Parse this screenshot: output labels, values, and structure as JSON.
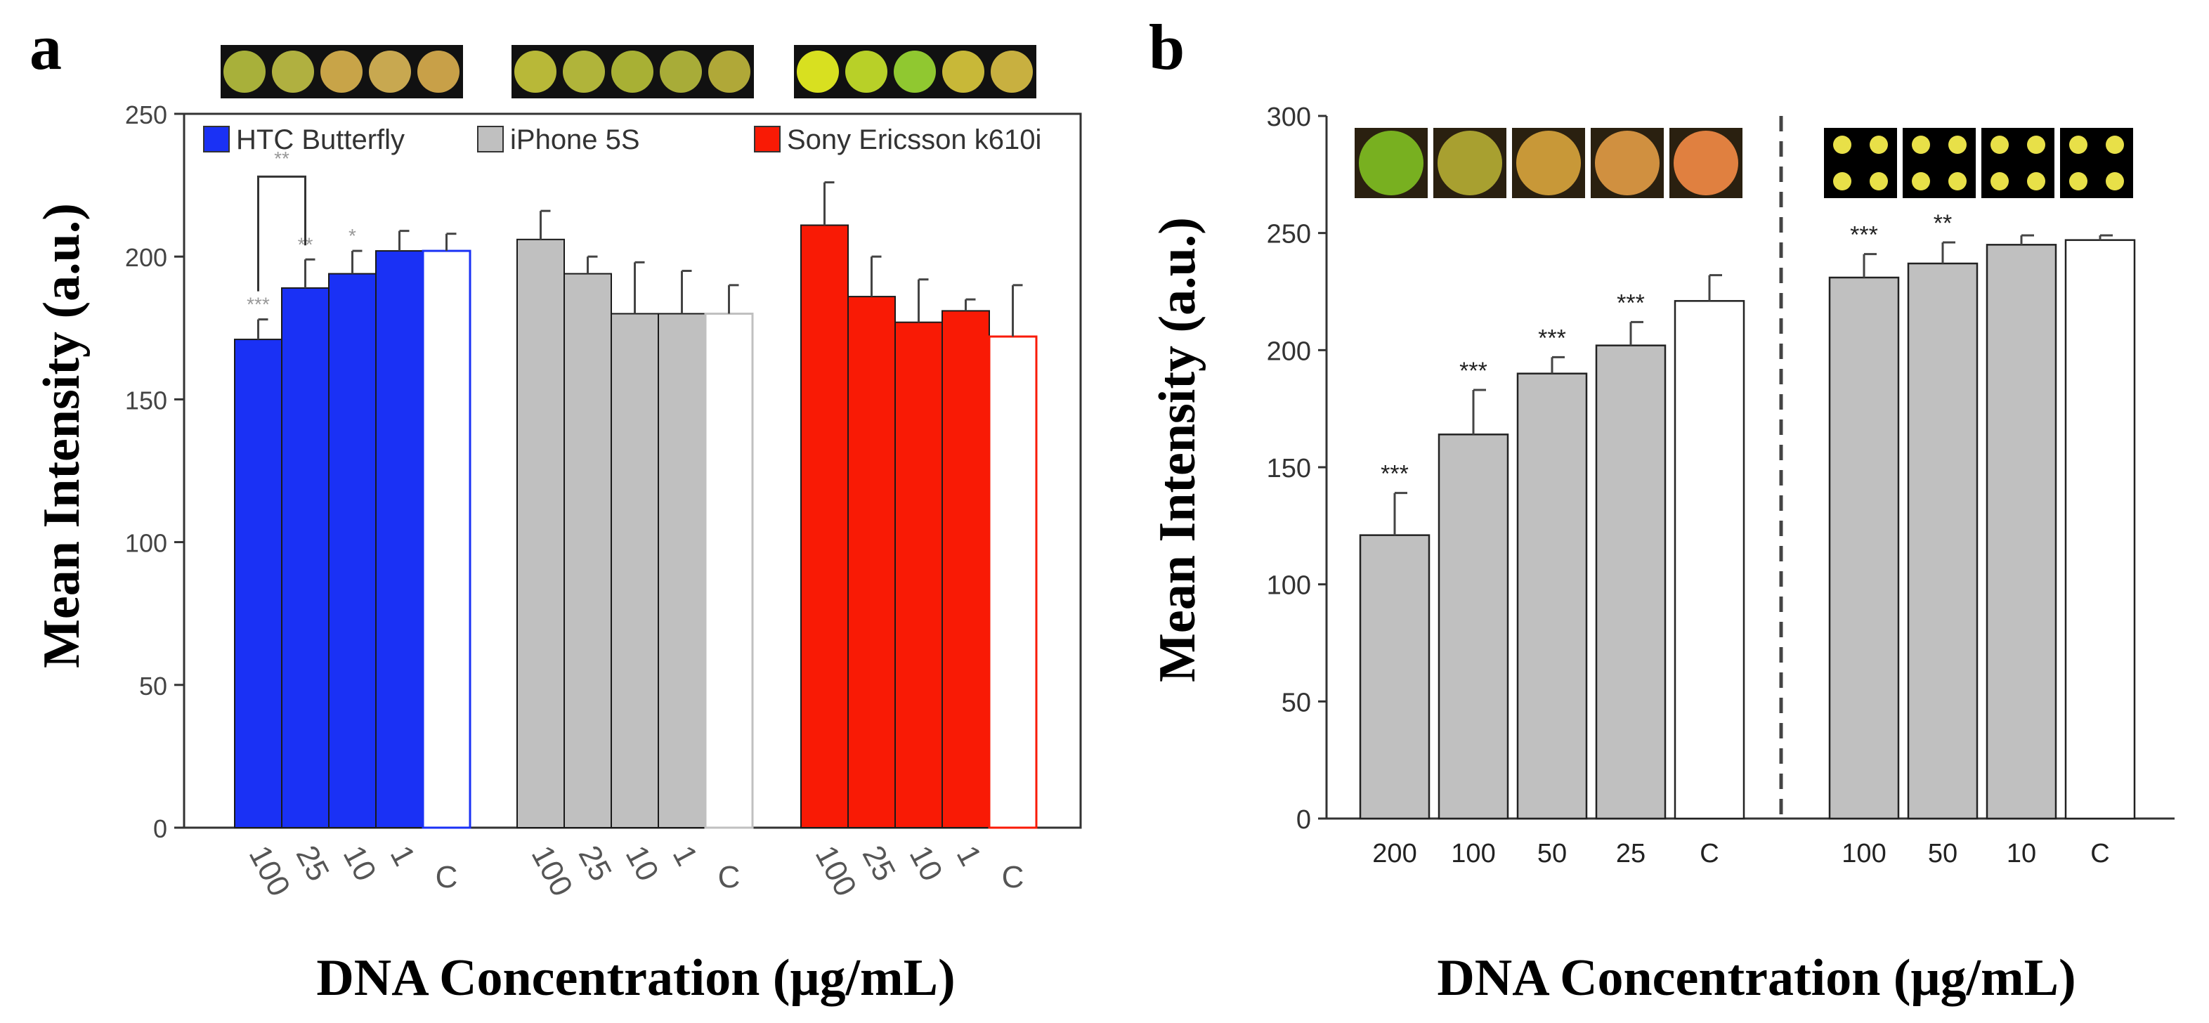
{
  "chart_data": [
    {
      "panel": "a",
      "type": "bar",
      "title": "",
      "ylabel": "Mean Intensity (a.u.)",
      "xlabel": "DNA Concentration (μg/mL)",
      "ylim": [
        0,
        250
      ],
      "yticks": [
        0,
        50,
        100,
        150,
        200,
        250
      ],
      "legend_position": "top-left",
      "categories": [
        "100",
        "25",
        "10",
        "1",
        "C"
      ],
      "series": [
        {
          "name": "HTC Butterfly",
          "color": "#1a31f5",
          "control_color": "#1a31f5",
          "values": [
            171,
            189,
            194,
            202,
            202
          ],
          "errors": [
            7,
            10,
            8,
            7,
            6
          ],
          "significance": [
            "***",
            "**",
            "*",
            "",
            ""
          ]
        },
        {
          "name": "iPhone 5S",
          "color": "#c0c0c0",
          "control_color": "#c0c0c0",
          "values": [
            206,
            194,
            180,
            180,
            180
          ],
          "errors": [
            10,
            6,
            18,
            15,
            10
          ],
          "significance": [
            "",
            "",
            "",
            "",
            ""
          ]
        },
        {
          "name": "Sony Ericsson k610i",
          "color": "#f91a05",
          "control_color": "#f91a05",
          "values": [
            211,
            186,
            177,
            181,
            172
          ],
          "errors": [
            15,
            14,
            15,
            4,
            18
          ],
          "significance": [
            "",
            "",
            "",
            "",
            ""
          ]
        }
      ],
      "bracket_label": "**",
      "swatch_colors": [
        [
          "#a8b03a",
          "#b0b040",
          "#c8a448",
          "#c8a850",
          "#c8a048"
        ],
        [
          "#b8b838",
          "#b0b43a",
          "#a8b034",
          "#a8ac38",
          "#b0a838"
        ],
        [
          "#d8e020",
          "#b8d028",
          "#90c830",
          "#c8b838",
          "#c8b040"
        ]
      ]
    },
    {
      "panel": "b",
      "type": "bar",
      "title": "",
      "ylabel": "Mean Intensity (a.u.)",
      "xlabel": "DNA Concentration (μg/mL)",
      "ylim": [
        0,
        300
      ],
      "yticks": [
        0,
        50,
        100,
        150,
        200,
        250,
        300
      ],
      "groups": [
        {
          "categories": [
            "200",
            "100",
            "50",
            "25",
            "C"
          ],
          "values": [
            121,
            164,
            190,
            202,
            221
          ],
          "errors": [
            18,
            19,
            7,
            10,
            11
          ],
          "significance": [
            "***",
            "***",
            "***",
            "***",
            ""
          ],
          "swatch_colors": [
            "#78b020",
            "#a8a030",
            "#c89838",
            "#d09040",
            "#e08040"
          ]
        },
        {
          "categories": [
            "100",
            "50",
            "10",
            "C"
          ],
          "values": [
            231,
            237,
            245,
            247
          ],
          "errors": [
            10,
            9,
            4,
            2
          ],
          "significance": [
            "***",
            "**",
            "",
            ""
          ],
          "swatch_colors": [
            "#e8e048",
            "#e8e048",
            "#e8e048",
            "#e8e048"
          ]
        }
      ],
      "bar_color": "#c0c0c0",
      "control_color": "#ffffff"
    }
  ],
  "panel_labels": {
    "a": "a",
    "b": "b"
  }
}
